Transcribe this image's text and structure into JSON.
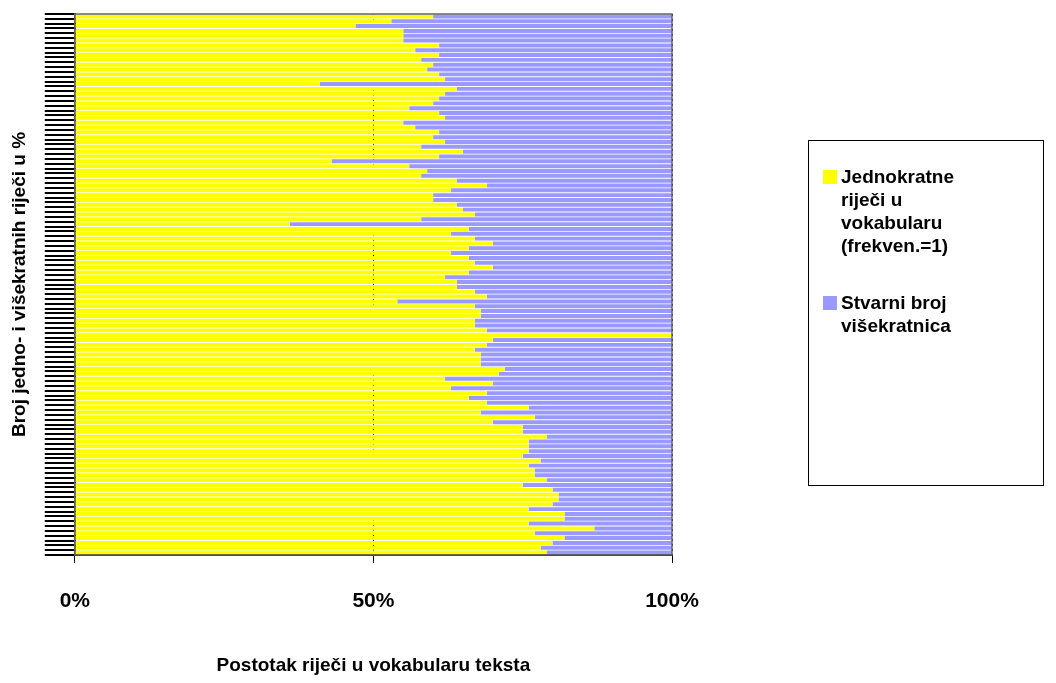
{
  "chart_data": {
    "type": "bar",
    "orientation": "horizontal",
    "stacked": true,
    "xlabel": "Postotak riječi u vokabularu teksta",
    "ylabel": "Broj jedno- i višekratnih riječi u %",
    "categories": [
      null,
      null,
      null,
      null,
      null,
      null,
      null,
      null,
      null,
      null,
      null,
      null,
      null,
      null,
      null,
      null,
      null,
      null,
      null,
      null,
      null,
      null,
      null,
      null,
      null,
      null,
      null,
      null,
      null,
      null,
      null,
      null,
      null,
      null,
      null,
      null,
      null,
      null,
      null,
      null,
      null,
      null,
      null,
      null,
      null,
      null,
      null,
      null,
      null,
      null,
      null,
      null,
      null,
      null,
      null,
      null,
      null,
      null,
      null,
      null,
      null,
      null,
      null,
      null,
      null,
      null,
      null,
      null,
      null,
      null,
      null,
      null,
      null,
      null,
      null,
      null,
      null,
      null,
      null,
      null,
      null,
      null,
      null,
      null,
      null,
      null,
      null,
      null,
      null,
      null,
      null,
      null,
      null,
      null,
      null,
      null,
      null,
      null,
      null,
      null,
      null,
      null,
      null,
      null,
      null,
      null,
      null,
      null,
      null,
      null,
      null,
      null
    ],
    "series": [
      {
        "name": "Jednokratne riječi u vokabularu (frekven.=1)",
        "color": "#ffff00",
        "values": [
          60,
          53,
          47,
          55,
          55,
          55,
          61,
          57,
          61,
          58,
          60,
          59,
          61,
          62,
          41,
          64,
          62,
          61,
          60,
          56,
          61,
          62,
          55,
          57,
          61,
          60,
          62,
          58,
          65,
          61,
          43,
          56,
          59,
          58,
          64,
          69,
          63,
          60,
          60,
          64,
          65,
          67,
          58,
          36,
          66,
          63,
          67,
          70,
          66,
          63,
          66,
          67,
          70,
          66,
          62,
          64,
          64,
          67,
          69,
          54,
          67,
          68,
          68,
          67,
          67,
          69,
          100,
          70,
          69,
          67,
          68,
          68,
          68,
          72,
          71,
          62,
          70,
          63,
          69,
          66,
          69,
          76,
          68,
          77,
          70,
          75,
          75,
          79,
          76,
          76,
          76,
          75,
          78,
          76,
          77,
          77,
          79,
          75,
          80,
          81,
          81,
          80,
          76,
          82,
          82,
          76,
          87,
          77,
          82,
          80,
          78,
          79
        ]
      },
      {
        "name": "Stvarni broj višekratnica",
        "color": "#9999ff",
        "values": [
          40,
          47,
          53,
          45,
          45,
          45,
          39,
          43,
          39,
          42,
          40,
          41,
          39,
          38,
          59,
          36,
          38,
          39,
          40,
          44,
          39,
          38,
          45,
          43,
          39,
          40,
          38,
          42,
          35,
          39,
          57,
          44,
          41,
          42,
          36,
          31,
          37,
          40,
          40,
          36,
          35,
          33,
          42,
          64,
          34,
          37,
          33,
          30,
          34,
          37,
          34,
          33,
          30,
          34,
          38,
          36,
          36,
          33,
          31,
          46,
          33,
          32,
          32,
          33,
          33,
          31,
          0,
          30,
          31,
          33,
          32,
          32,
          32,
          28,
          29,
          38,
          30,
          37,
          31,
          34,
          31,
          24,
          32,
          23,
          30,
          25,
          25,
          21,
          24,
          24,
          24,
          25,
          22,
          24,
          23,
          23,
          21,
          25,
          20,
          19,
          19,
          20,
          24,
          18,
          18,
          24,
          13,
          23,
          18,
          20,
          22,
          21
        ]
      }
    ],
    "xlim": [
      0,
      100
    ],
    "xticks": [
      {
        "value": 0,
        "label": "0%"
      },
      {
        "value": 50,
        "label": "50%"
      },
      {
        "value": 100,
        "label": "100%"
      }
    ],
    "grid": "x",
    "legend": "right",
    "tick_labels": "x"
  }
}
